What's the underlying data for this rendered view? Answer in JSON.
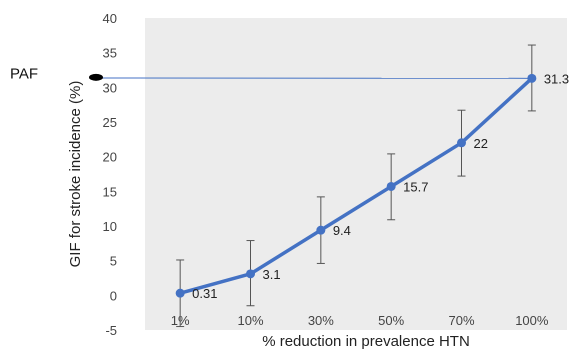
{
  "chart_data": {
    "type": "line",
    "categories": [
      "1%",
      "10%",
      "30%",
      "50%",
      "70%",
      "100%"
    ],
    "series": [
      {
        "values": [
          0.31,
          3.1,
          9.4,
          15.7,
          22,
          31.3
        ],
        "labels": [
          "0.31",
          "3.1",
          "9.4",
          "15.7",
          "22",
          "31.3"
        ],
        "error_low": [
          -4.5,
          -1.5,
          4.6,
          10.9,
          17.2,
          26.6
        ],
        "error_high": [
          5.1,
          7.9,
          14.2,
          20.4,
          26.7,
          36.1
        ],
        "color": "#4472c4"
      }
    ],
    "xlabel": "% reduction in prevalence HTN",
    "ylabel": "GIF for stroke incidence (%)",
    "ylim": [
      -5,
      40
    ],
    "yticks": [
      -5,
      0,
      5,
      10,
      15,
      20,
      25,
      30,
      35,
      40
    ],
    "grid": false,
    "reference_line": {
      "label": "PAF",
      "value": 31.3,
      "color": "#4472c4"
    },
    "colors": {
      "plot_background": "#ececec",
      "error_bar": "#555555",
      "marker": "#000000"
    }
  }
}
